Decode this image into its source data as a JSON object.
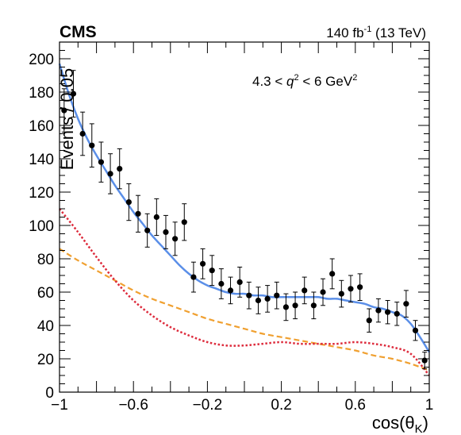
{
  "header": {
    "experiment": "CMS",
    "luminosity_value": "140 fb",
    "luminosity_exp": "-1",
    "energy": "(13 TeV)"
  },
  "annotation": {
    "prefix": "4.3 < ",
    "q": "q",
    "q_exp": "2",
    "middle": " < 6 GeV",
    "gev_exp": "2"
  },
  "chart_data": {
    "type": "scatter",
    "title": "",
    "xlabel": "cos(θ",
    "xlabel_sub": "K",
    "xlabel_close": ")",
    "ylabel": "Events / 0.05",
    "xlim": [
      -1,
      1
    ],
    "ylim": [
      0,
      210
    ],
    "x_ticks": [
      -1,
      -0.6,
      -0.2,
      0.2,
      0.6,
      1
    ],
    "x_tick_labels": [
      "−1",
      "−0.6",
      "−0.2",
      "0.2",
      "0.6",
      "1"
    ],
    "y_ticks": [
      0,
      20,
      40,
      60,
      80,
      100,
      120,
      140,
      160,
      180,
      200
    ],
    "y_tick_labels": [
      "0",
      "20",
      "40",
      "60",
      "80",
      "100",
      "120",
      "140",
      "160",
      "180",
      "200"
    ],
    "grid": false,
    "colors": {
      "data": "#000000",
      "total_fit": "#5b8fe8",
      "signal": "#f0a030",
      "background": "#dd2b3c"
    },
    "data_points": {
      "x": [
        -0.975,
        -0.925,
        -0.875,
        -0.825,
        -0.775,
        -0.725,
        -0.675,
        -0.625,
        -0.575,
        -0.525,
        -0.475,
        -0.425,
        -0.375,
        -0.325,
        -0.275,
        -0.225,
        -0.175,
        -0.125,
        -0.075,
        -0.025,
        0.025,
        0.075,
        0.125,
        0.175,
        0.225,
        0.275,
        0.325,
        0.375,
        0.425,
        0.475,
        0.525,
        0.575,
        0.625,
        0.675,
        0.725,
        0.775,
        0.825,
        0.875,
        0.925,
        0.975
      ],
      "y": [
        169,
        179,
        155,
        148,
        138,
        131,
        134,
        114,
        107,
        97,
        105,
        96,
        92,
        102,
        69,
        77,
        73,
        65,
        61,
        66,
        58,
        55,
        56,
        58,
        51,
        52,
        61,
        52,
        60,
        71,
        59,
        62,
        63,
        43,
        49,
        48,
        47,
        53,
        37,
        19
      ],
      "err": [
        13,
        14,
        13,
        13,
        12,
        12,
        12,
        11,
        11,
        10,
        11,
        10,
        10,
        11,
        9,
        9,
        9,
        9,
        8,
        9,
        8,
        8,
        8,
        8,
        8,
        8,
        8,
        8,
        8,
        9,
        8,
        8,
        8,
        7,
        7,
        7,
        7,
        8,
        6,
        5
      ]
    },
    "series": [
      {
        "style": "solid",
        "x": [
          -1,
          -0.95,
          -0.9,
          -0.85,
          -0.8,
          -0.75,
          -0.7,
          -0.65,
          -0.6,
          -0.55,
          -0.5,
          -0.45,
          -0.4,
          -0.35,
          -0.3,
          -0.25,
          -0.2,
          -0.15,
          -0.1,
          -0.05,
          0,
          0.05,
          0.1,
          0.15,
          0.2,
          0.25,
          0.3,
          0.35,
          0.4,
          0.45,
          0.5,
          0.55,
          0.6,
          0.65,
          0.7,
          0.75,
          0.8,
          0.85,
          0.9,
          0.95,
          1
        ],
        "y": [
          197,
          179,
          164,
          152,
          142,
          133,
          124,
          116,
          108,
          101,
          94,
          88,
          82,
          76,
          71,
          67,
          64,
          62,
          60,
          59,
          59,
          58,
          58,
          57,
          57,
          57,
          57,
          57,
          57,
          56,
          56,
          55,
          54,
          53,
          51,
          50,
          48,
          46,
          41,
          33,
          24
        ]
      },
      {
        "style": "dashed",
        "x": [
          -1,
          -0.9,
          -0.8,
          -0.7,
          -0.6,
          -0.5,
          -0.4,
          -0.3,
          -0.2,
          -0.1,
          0,
          0.1,
          0.2,
          0.3,
          0.4,
          0.5,
          0.6,
          0.7,
          0.8,
          0.9,
          1
        ],
        "y": [
          86,
          79,
          73,
          67,
          61,
          56,
          52,
          48,
          44,
          41,
          38,
          35,
          33,
          31,
          29,
          27,
          25,
          22,
          20,
          17,
          13
        ]
      },
      {
        "style": "dotted",
        "x": [
          -1,
          -0.9,
          -0.8,
          -0.7,
          -0.6,
          -0.5,
          -0.4,
          -0.3,
          -0.2,
          -0.1,
          0,
          0.1,
          0.2,
          0.3,
          0.4,
          0.5,
          0.6,
          0.7,
          0.8,
          0.9,
          1
        ],
        "y": [
          110,
          96,
          81,
          67,
          55,
          46,
          39,
          34,
          30,
          28,
          28,
          29,
          30,
          29,
          29,
          29,
          30,
          29,
          27,
          23,
          10
        ]
      }
    ]
  }
}
